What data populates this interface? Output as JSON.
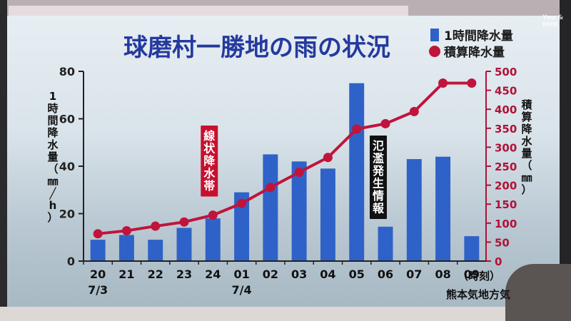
{
  "watermark": [
    "You &",
    "NHK"
  ],
  "chart_data": {
    "type": "bar+line",
    "title": "球磨村一勝地の雨の状況",
    "legend": [
      "1時間降水量",
      "積算降水量"
    ],
    "legend_position": "top-right",
    "categories": [
      "20",
      "21",
      "22",
      "23",
      "24",
      "01",
      "02",
      "03",
      "04",
      "05",
      "06",
      "07",
      "08",
      "09"
    ],
    "date_labels": [
      {
        "at": "20",
        "text": "7/3"
      },
      {
        "at": "01",
        "text": "7/4"
      }
    ],
    "x_unit": "（時刻）",
    "series": [
      {
        "name": "1時間降水量",
        "type": "bar",
        "axis": "left",
        "color": "#2f62c8",
        "values": [
          9,
          11,
          9,
          14,
          18,
          29,
          45,
          42,
          39,
          75,
          14.5,
          43,
          44,
          10.5
        ]
      },
      {
        "name": "積算降水量",
        "type": "line",
        "axis": "right",
        "color": "#c0143c",
        "values": [
          72,
          80,
          92,
          103,
          121,
          152,
          194,
          234,
          273,
          348,
          362,
          394,
          469,
          469
        ]
      }
    ],
    "ylabel_left": "1時間降水量（㎜/h）",
    "ylabel_left_lines": [
      "1",
      "時",
      "間",
      "降",
      "水",
      "量",
      "（",
      "㎜",
      "╱",
      "h",
      "）"
    ],
    "ylim_left": [
      0,
      80
    ],
    "yticks_left": [
      0,
      20,
      40,
      60,
      80
    ],
    "ylabel_right": "積算降水量（㎜）",
    "ylabel_right_lines": [
      "積",
      "算",
      "降",
      "水",
      "量",
      "（",
      "㎜",
      "）"
    ],
    "ylim_right": [
      0,
      500
    ],
    "yticks_right": [
      0,
      50,
      100,
      150,
      200,
      250,
      300,
      350,
      400,
      450,
      500
    ],
    "annotations": [
      {
        "text": "線状降水帯",
        "style": "red-box",
        "at": "24"
      },
      {
        "text": "氾濫発生情報",
        "style": "black-box",
        "at": "06"
      }
    ],
    "source": "熊本気地方気"
  },
  "colors": {
    "bar": "#2f62c8",
    "line": "#c0143c",
    "title": "#243a9e",
    "axis_left": "#222222",
    "axis_right": "#b01236"
  }
}
